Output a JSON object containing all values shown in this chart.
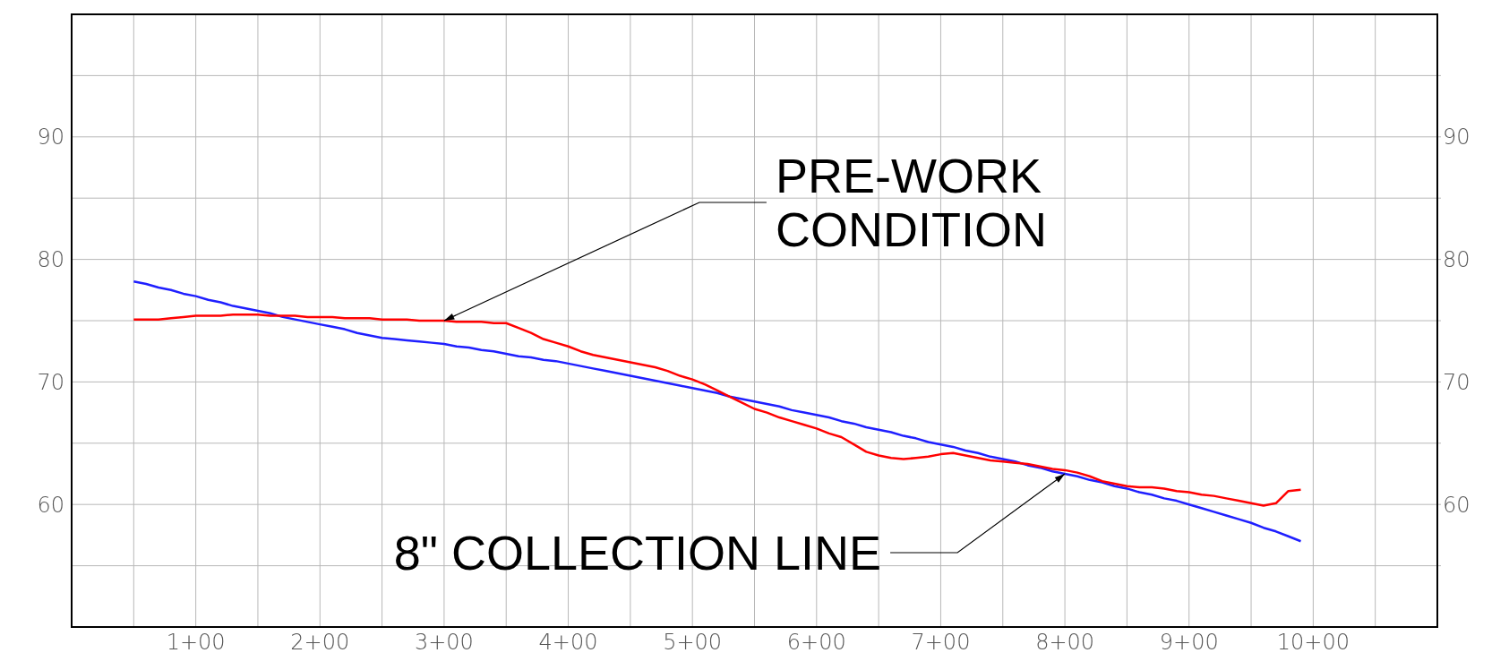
{
  "chart_data": {
    "type": "line",
    "categories": [
      null,
      null,
      null,
      null,
      null,
      null,
      null,
      null,
      null,
      null,
      "1+00",
      null,
      null,
      null,
      null,
      null,
      null,
      null,
      null,
      null,
      "2+00",
      null,
      null,
      null,
      null,
      null,
      null,
      null,
      null,
      null,
      "3+00",
      null,
      null,
      null,
      null,
      null,
      null,
      null,
      null,
      null,
      "4+00",
      null,
      null,
      null,
      null,
      null,
      null,
      null,
      null,
      null,
      "5+00",
      null,
      null,
      null,
      null,
      null,
      null,
      null,
      null,
      null,
      "6+00",
      null,
      null,
      null,
      null,
      null,
      null,
      null,
      null,
      null,
      "7+00",
      null,
      null,
      null,
      null,
      null,
      null,
      null,
      null,
      null,
      "8+00",
      null,
      null,
      null,
      null,
      null,
      null,
      null,
      null,
      null,
      "9+00",
      null,
      null,
      null,
      null,
      null,
      null,
      null,
      null,
      null,
      "10+00",
      null,
      null,
      null,
      null,
      null,
      null,
      null,
      null,
      null,
      null
    ],
    "ylim": [
      50,
      100
    ],
    "yticks": [
      {
        "value": 55,
        "label": null
      },
      60,
      {
        "value": 65,
        "label": null
      },
      70,
      {
        "value": 75,
        "label": null
      },
      80,
      {
        "value": 85,
        "label": null
      },
      90,
      {
        "value": 95,
        "label": null
      }
    ],
    "y2lim": [
      50,
      100
    ],
    "y2ticks": [
      {
        "value": 55,
        "label": null
      },
      60,
      {
        "value": 65,
        "label": null
      },
      70,
      {
        "value": 75,
        "label": null
      },
      80,
      {
        "value": 85,
        "label": null
      },
      90,
      {
        "value": 95,
        "label": null
      }
    ],
    "grid": true,
    "series": [
      {
        "color": "#1f1fff",
        "values": [
          null,
          null,
          null,
          null,
          null,
          78.2,
          78.0,
          77.7,
          77.5,
          77.2,
          77.0,
          76.7,
          76.5,
          76.2,
          76.0,
          75.8,
          75.6,
          75.3,
          75.1,
          74.9,
          74.7,
          74.5,
          74.3,
          74.0,
          73.8,
          73.6,
          73.5,
          73.4,
          73.3,
          73.2,
          73.1,
          72.9,
          72.8,
          72.6,
          72.5,
          72.3,
          72.1,
          72.0,
          71.8,
          71.7,
          71.5,
          71.3,
          71.1,
          70.9,
          70.7,
          70.5,
          70.3,
          70.1,
          69.9,
          69.7,
          69.5,
          69.3,
          69.1,
          68.8,
          68.6,
          68.4,
          68.2,
          68.0,
          67.7,
          67.5,
          67.3,
          67.1,
          66.8,
          66.6,
          66.3,
          66.1,
          65.9,
          65.6,
          65.4,
          65.1,
          64.9,
          64.7,
          64.4,
          64.2,
          63.9,
          63.7,
          63.5,
          63.2,
          63.0,
          62.7,
          62.5,
          62.3,
          62.0,
          61.8,
          61.5,
          61.3,
          61.0,
          60.8,
          60.5,
          60.3,
          60.0,
          59.7,
          59.4,
          59.1,
          58.8,
          58.5,
          58.1,
          57.8,
          57.4,
          57.0,
          null,
          null,
          null,
          null,
          null,
          null,
          null,
          null,
          null,
          null,
          null
        ]
      },
      {
        "color": "#ff0000",
        "values": [
          null,
          null,
          null,
          null,
          null,
          75.1,
          75.1,
          75.1,
          75.2,
          75.3,
          75.4,
          75.4,
          75.4,
          75.5,
          75.5,
          75.5,
          75.4,
          75.4,
          75.4,
          75.3,
          75.3,
          75.3,
          75.2,
          75.2,
          75.2,
          75.1,
          75.1,
          75.1,
          75.0,
          75.0,
          75.0,
          74.9,
          74.9,
          74.9,
          74.8,
          74.8,
          74.4,
          74.0,
          73.5,
          73.2,
          72.9,
          72.5,
          72.2,
          72.0,
          71.8,
          71.6,
          71.4,
          71.2,
          70.9,
          70.5,
          70.2,
          69.8,
          69.3,
          68.8,
          68.3,
          67.8,
          67.5,
          67.1,
          66.8,
          66.5,
          66.2,
          65.8,
          65.5,
          64.9,
          64.3,
          64.0,
          63.8,
          63.7,
          63.8,
          63.9,
          64.1,
          64.2,
          64.0,
          63.8,
          63.6,
          63.5,
          63.4,
          63.3,
          63.1,
          62.9,
          62.8,
          62.6,
          62.3,
          61.9,
          61.7,
          61.5,
          61.4,
          61.4,
          61.3,
          61.1,
          61.0,
          60.8,
          60.7,
          60.5,
          60.3,
          60.1,
          59.9,
          60.1,
          61.1,
          61.2,
          null,
          null,
          null,
          null,
          null,
          null,
          null,
          null,
          null,
          null,
          null
        ]
      }
    ],
    "annotations": [
      {
        "text": "PRE-WORK\nCONDITION",
        "x": "3+00",
        "y": 75.0
      },
      {
        "text": "8\" COLLECTION LINE",
        "x": "8+00",
        "y": 62.5
      }
    ]
  }
}
